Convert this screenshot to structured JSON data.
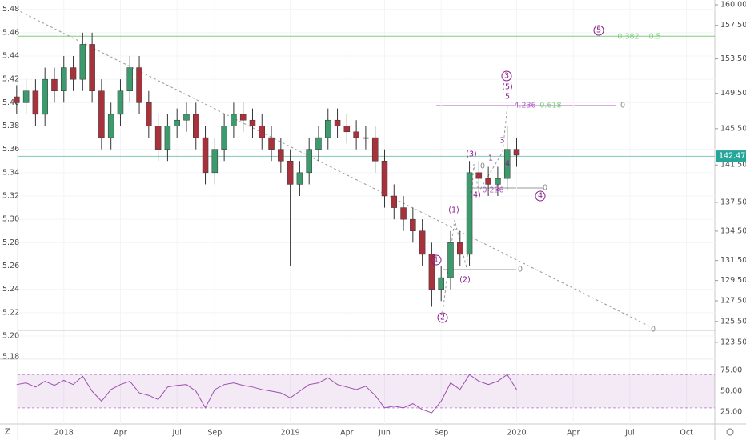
{
  "chart_data": {
    "type": "candlestick",
    "x": [
      -2.5,
      -2,
      -1.5,
      -1,
      -0.5,
      0,
      0.5,
      1,
      1.5,
      2,
      2.5,
      3,
      3.5,
      4,
      4.5,
      5,
      5.5,
      6,
      6.5,
      7,
      7.5,
      8,
      8.5,
      9,
      9.5,
      10,
      10.5,
      11,
      11.5,
      12,
      12.5,
      13,
      13.5,
      14,
      14.5,
      15,
      15.5,
      16,
      16.5,
      17,
      17.5,
      18,
      18.5,
      19,
      19.5,
      20,
      20.5,
      21,
      21.5,
      22,
      22.5,
      23,
      23.5,
      24
    ],
    "open": [
      5.405,
      5.4,
      5.41,
      5.39,
      5.42,
      5.41,
      5.43,
      5.42,
      5.45,
      5.41,
      5.37,
      5.39,
      5.41,
      5.43,
      5.4,
      5.38,
      5.36,
      5.38,
      5.385,
      5.39,
      5.37,
      5.34,
      5.36,
      5.38,
      5.39,
      5.385,
      5.38,
      5.37,
      5.36,
      5.35,
      5.33,
      5.34,
      5.36,
      5.37,
      5.385,
      5.38,
      5.375,
      5.37,
      5.37,
      5.35,
      5.32,
      5.31,
      5.3,
      5.29,
      5.27,
      5.24,
      5.25,
      5.28,
      5.27,
      5.34,
      5.335,
      5.33,
      5.335,
      5.36
    ],
    "high": [
      5.415,
      5.42,
      5.42,
      5.43,
      5.43,
      5.44,
      5.44,
      5.46,
      5.46,
      5.42,
      5.4,
      5.42,
      5.44,
      5.44,
      5.41,
      5.39,
      5.39,
      5.395,
      5.4,
      5.4,
      5.38,
      5.37,
      5.39,
      5.4,
      5.4,
      5.395,
      5.39,
      5.38,
      5.37,
      5.36,
      5.35,
      5.37,
      5.38,
      5.395,
      5.395,
      5.39,
      5.385,
      5.38,
      5.38,
      5.36,
      5.33,
      5.32,
      5.31,
      5.3,
      5.28,
      5.26,
      5.29,
      5.29,
      5.35,
      5.35,
      5.345,
      5.345,
      5.38,
      5.37
    ],
    "low": [
      5.39,
      5.39,
      5.38,
      5.38,
      5.4,
      5.4,
      5.41,
      5.41,
      5.4,
      5.36,
      5.36,
      5.38,
      5.4,
      5.39,
      5.37,
      5.35,
      5.35,
      5.37,
      5.375,
      5.36,
      5.33,
      5.33,
      5.35,
      5.37,
      5.375,
      5.37,
      5.36,
      5.35,
      5.34,
      5.26,
      5.32,
      5.33,
      5.35,
      5.36,
      5.37,
      5.365,
      5.36,
      5.36,
      5.34,
      5.31,
      5.3,
      5.29,
      5.28,
      5.26,
      5.225,
      5.23,
      5.24,
      5.26,
      5.26,
      5.325,
      5.32,
      5.32,
      5.325,
      5.345
    ],
    "close": [
      5.4,
      5.41,
      5.39,
      5.42,
      5.41,
      5.43,
      5.42,
      5.45,
      5.41,
      5.37,
      5.39,
      5.41,
      5.43,
      5.4,
      5.38,
      5.36,
      5.38,
      5.385,
      5.39,
      5.37,
      5.34,
      5.36,
      5.38,
      5.39,
      5.385,
      5.38,
      5.37,
      5.36,
      5.35,
      5.33,
      5.34,
      5.36,
      5.37,
      5.385,
      5.38,
      5.375,
      5.37,
      5.37,
      5.35,
      5.32,
      5.31,
      5.3,
      5.29,
      5.27,
      5.24,
      5.25,
      5.28,
      5.27,
      5.34,
      5.335,
      5.33,
      5.335,
      5.36,
      5.355
    ],
    "up_color": "#3d9a6c",
    "down_color": "#a8323c",
    "xlim": [
      -2.45,
      34.5
    ],
    "xticks": [
      {
        "value": 0,
        "label": "2018"
      },
      {
        "value": 3,
        "label": "Apr"
      },
      {
        "value": 6,
        "label": "Jul"
      },
      {
        "value": 8,
        "label": "Sep"
      },
      {
        "value": 12,
        "label": "2019"
      },
      {
        "value": 15,
        "label": "Apr"
      },
      {
        "value": 17,
        "label": "Jun"
      },
      {
        "value": 20,
        "label": "Sep"
      },
      {
        "value": 24,
        "label": "2020"
      },
      {
        "value": 27,
        "label": "Apr"
      },
      {
        "value": 30,
        "label": "Jul"
      },
      {
        "value": 33,
        "label": "Oct"
      }
    ],
    "ylim": [
      5.1808,
      5.488
    ],
    "yticks": [
      {
        "value": 5.18,
        "label": "5.18"
      },
      {
        "value": 5.2,
        "label": "5.20"
      },
      5.22,
      5.24,
      5.26,
      5.28,
      {
        "value": 5.3,
        "label": "5.30"
      },
      5.32,
      5.34,
      5.36,
      5.38,
      {
        "value": 5.4,
        "label": "5.40"
      },
      5.42,
      5.44,
      5.46,
      5.48
    ],
    "y2lim": [
      121.99,
      160.59
    ],
    "y2_scale": "log",
    "y2ticks": [
      {
        "value": 160,
        "label": "160.000"
      },
      {
        "value": 157.5,
        "label": "157.500"
      },
      {
        "value": 153.5,
        "label": "153.500"
      },
      {
        "value": 149.5,
        "label": "149.500"
      },
      {
        "value": 145.5,
        "label": "145.500"
      },
      {
        "value": 141.5,
        "label": "141.500"
      },
      {
        "value": 137.5,
        "label": "137.500"
      },
      {
        "value": 134.5,
        "label": "134.500"
      },
      {
        "value": 131.5,
        "label": "131.500"
      },
      {
        "value": 129.5,
        "label": "129.500"
      },
      {
        "value": 127.5,
        "label": "127.500"
      },
      {
        "value": 125.5,
        "label": "125.500"
      },
      {
        "value": 123.5,
        "label": "123.500"
      }
    ],
    "last_price": 142.473,
    "last_price_color": "#26a69a",
    "levels": [
      {
        "value": 5.457,
        "color": "#7ccf7c"
      },
      {
        "value": 5.354,
        "color": "#7fc8b4"
      },
      {
        "value": 5.205,
        "color": "#888888"
      }
    ],
    "trendline": {
      "x": [
        -2.3,
        31.2
      ],
      "y": [
        5.478,
        5.207
      ]
    },
    "rsi": {
      "values": [
        58,
        60,
        55,
        62,
        57,
        63,
        58,
        68,
        50,
        38,
        52,
        58,
        62,
        48,
        45,
        40,
        55,
        57,
        58,
        50,
        30,
        52,
        58,
        60,
        57,
        55,
        52,
        50,
        48,
        42,
        50,
        58,
        60,
        66,
        58,
        55,
        52,
        56,
        45,
        30,
        32,
        30,
        35,
        28,
        24,
        38,
        60,
        52,
        70,
        62,
        58,
        62,
        70,
        52
      ],
      "color": "#9c4fb0",
      "band": [
        30,
        70
      ],
      "ylim": [
        10.6,
        87.5
      ],
      "yticks": [
        {
          "value": 75,
          "label": "75.00"
        },
        {
          "value": 50,
          "label": "50.00"
        },
        {
          "value": 25,
          "label": "25.00"
        }
      ]
    },
    "annotations": [
      {
        "text": "5",
        "circled": true
      },
      {
        "text": "0.382",
        "circled": false
      },
      {
        "text": "0.5",
        "circled": false
      },
      {
        "text": "3",
        "circled": true
      },
      {
        "text": "(5)",
        "circled": false
      },
      {
        "text": "5",
        "circled": false
      },
      {
        "text": "4.236",
        "circled": false
      },
      {
        "text": "0.618",
        "circled": false
      },
      {
        "text": "0",
        "circled": false
      },
      {
        "text": "(3)",
        "circled": false
      },
      {
        "text": "3",
        "circled": false
      },
      {
        "text": "1",
        "circled": false
      },
      {
        "text": "4",
        "circled": false
      },
      {
        "text": "0",
        "circled": false
      },
      {
        "text": "(4)",
        "circled": false
      },
      {
        "text": "0.236",
        "circled": false
      },
      {
        "text": "2",
        "circled": false
      },
      {
        "text": "0",
        "circled": false
      },
      {
        "text": "4",
        "circled": true
      },
      {
        "text": "(1)",
        "circled": false
      },
      {
        "text": "1",
        "circled": true
      },
      {
        "text": "0",
        "circled": false
      },
      {
        "text": "(2)",
        "circled": false
      },
      {
        "text": "2",
        "circled": true
      },
      {
        "text": "0",
        "circled": false
      }
    ],
    "corner_label": "Z"
  }
}
